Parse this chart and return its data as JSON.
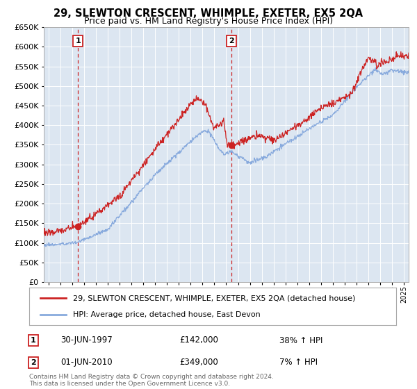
{
  "title": "29, SLEWTON CRESCENT, WHIMPLE, EXETER, EX5 2QA",
  "subtitle": "Price paid vs. HM Land Registry's House Price Index (HPI)",
  "ylim": [
    0,
    650000
  ],
  "yticks": [
    0,
    50000,
    100000,
    150000,
    200000,
    250000,
    300000,
    350000,
    400000,
    450000,
    500000,
    550000,
    600000,
    650000
  ],
  "xlim_start": 1994.6,
  "xlim_end": 2025.4,
  "bg_color": "#dce6f1",
  "grid_color": "#ffffff",
  "sale1_x": 1997.5,
  "sale1_y": 142000,
  "sale2_x": 2010.42,
  "sale2_y": 349000,
  "line1_color": "#cc2222",
  "line2_color": "#88aadd",
  "legend_line1": "29, SLEWTON CRESCENT, WHIMPLE, EXETER, EX5 2QA (detached house)",
  "legend_line2": "HPI: Average price, detached house, East Devon",
  "annotation1_date": "30-JUN-1997",
  "annotation1_price": "£142,000",
  "annotation1_hpi": "38% ↑ HPI",
  "annotation2_date": "01-JUN-2010",
  "annotation2_price": "£349,000",
  "annotation2_hpi": "7% ↑ HPI",
  "footer": "Contains HM Land Registry data © Crown copyright and database right 2024.\nThis data is licensed under the Open Government Licence v3.0."
}
